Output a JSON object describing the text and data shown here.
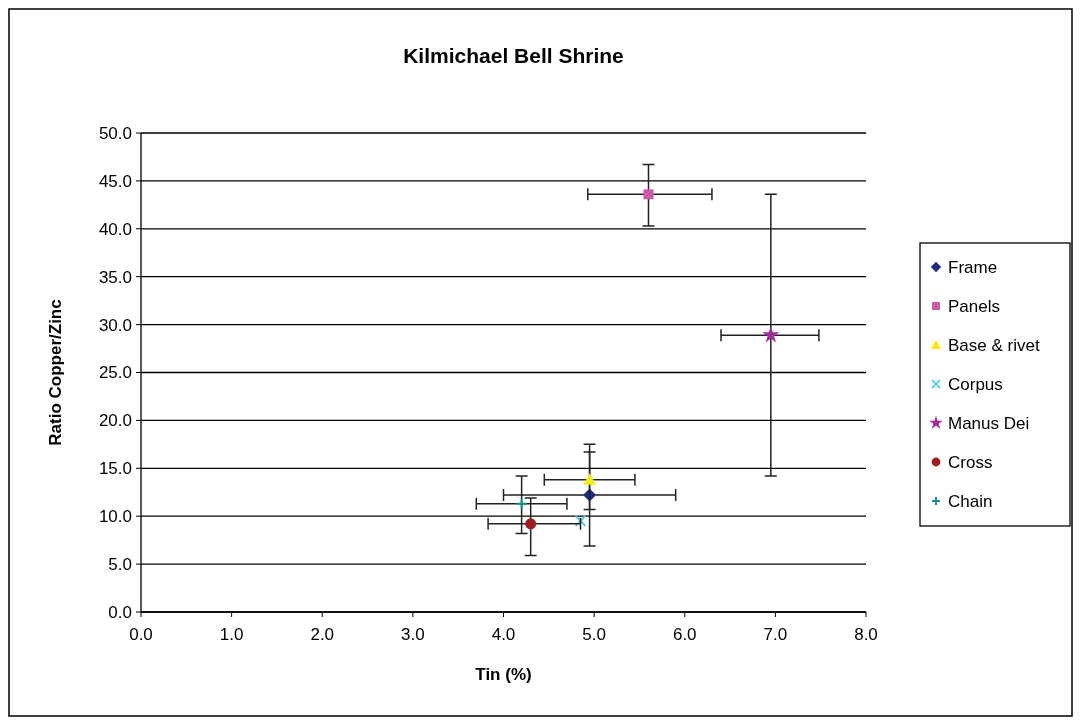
{
  "chart_data": {
    "type": "scatter",
    "title": "Kilmichael Bell Shrine",
    "xlabel": "Tin (%)",
    "ylabel": "Ratio Copper/Zinc",
    "xlim": [
      0,
      8
    ],
    "xticks": [
      {
        "value": 0,
        "label": "0.0"
      },
      {
        "value": 1,
        "label": "1.0"
      },
      {
        "value": 2,
        "label": "2.0"
      },
      {
        "value": 3,
        "label": "3.0"
      },
      {
        "value": 4,
        "label": "4.0"
      },
      {
        "value": 5,
        "label": "5.0"
      },
      {
        "value": 6,
        "label": "6.0"
      },
      {
        "value": 7,
        "label": "7.0"
      },
      {
        "value": 8,
        "label": "8.0"
      }
    ],
    "ylim": [
      0,
      50
    ],
    "yticks": [
      {
        "value": 0,
        "label": "0.0"
      },
      {
        "value": 5,
        "label": "5.0"
      },
      {
        "value": 10,
        "label": "10.0"
      },
      {
        "value": 15,
        "label": "15.0"
      },
      {
        "value": 20,
        "label": "20.0"
      },
      {
        "value": 25,
        "label": "25.0"
      },
      {
        "value": 30,
        "label": "30.0"
      },
      {
        "value": 35,
        "label": "35.0"
      },
      {
        "value": 40,
        "label": "40.0"
      },
      {
        "value": 45,
        "label": "45.0"
      },
      {
        "value": 50,
        "label": "50.0"
      }
    ],
    "grid": "y",
    "legend": "right",
    "series": [
      {
        "name": "Frame",
        "color": "#1f2a80",
        "marker": "diamond",
        "x": [
          4.95
        ],
        "values": [
          12.2
        ],
        "errors": [
          [
            6.9,
            16.7
          ]
        ],
        "xerrors": [
          [
            4.0,
            5.9
          ]
        ]
      },
      {
        "name": "Panels",
        "color": "#cc5aa8",
        "marker": "square",
        "x": [
          5.6
        ],
        "values": [
          43.6
        ],
        "errors": [
          [
            40.3,
            46.7
          ]
        ],
        "xerrors": [
          [
            4.93,
            6.3
          ]
        ]
      },
      {
        "name": "Base & rivet",
        "color": "#f2ea1e",
        "marker": "triangle",
        "x": [
          4.95
        ],
        "values": [
          13.8
        ],
        "errors": [
          [
            10.7,
            17.5
          ]
        ],
        "xerrors": [
          [
            4.45,
            5.45
          ]
        ]
      },
      {
        "name": "Corpus",
        "color": "#5ccbe0",
        "marker": "cross",
        "x": [
          4.85
        ],
        "values": [
          9.5
        ]
      },
      {
        "name": "Manus Dei",
        "color": "#9c2f96",
        "marker": "star",
        "x": [
          6.95
        ],
        "values": [
          28.9
        ],
        "errors": [
          [
            14.2,
            43.6
          ]
        ],
        "xerrors": [
          [
            6.4,
            7.48
          ]
        ]
      },
      {
        "name": "Cross",
        "color": "#a01c20",
        "marker": "circle",
        "x": [
          4.3
        ],
        "values": [
          9.2
        ],
        "errors": [
          [
            5.9,
            11.9
          ]
        ],
        "xerrors": [
          [
            3.83,
            4.85
          ]
        ]
      },
      {
        "name": "Chain",
        "color": "#17908f",
        "marker": "plus",
        "x": [
          4.2
        ],
        "values": [
          11.3
        ],
        "errors": [
          [
            8.2,
            14.2
          ]
        ],
        "xerrors": [
          [
            3.7,
            4.7
          ]
        ]
      }
    ]
  }
}
